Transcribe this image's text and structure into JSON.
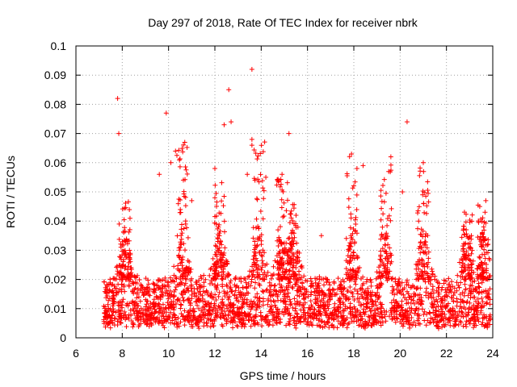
{
  "chart_data": {
    "type": "scatter",
    "title": "Day 297 of 2018, Rate Of TEC Index for receiver nbrk",
    "xlabel": "GPS time / hours",
    "ylabel": "ROTI / TECUs",
    "xlim": [
      6,
      24
    ],
    "ylim": [
      0,
      0.1
    ],
    "x_ticks": [
      "6",
      "8",
      "10",
      "12",
      "14",
      "16",
      "18",
      "20",
      "22",
      "24"
    ],
    "y_ticks": [
      "0",
      "0.01",
      "0.02",
      "0.03",
      "0.04",
      "0.05",
      "0.06",
      "0.07",
      "0.08",
      "0.09",
      "0.1"
    ],
    "grid": true,
    "marker": "+",
    "series_color": "#ff0000",
    "data_time_range": [
      7.2,
      23.9
    ],
    "density": {
      "typical_range": [
        0.005,
        0.02
      ],
      "peak_windows": [
        {
          "center": 8.1,
          "max": 0.047
        },
        {
          "center": 10.6,
          "max": 0.068
        },
        {
          "center": 12.2,
          "max": 0.058
        },
        {
          "center": 13.9,
          "max": 0.068
        },
        {
          "center": 14.9,
          "max": 0.056
        },
        {
          "center": 15.4,
          "max": 0.047
        },
        {
          "center": 17.9,
          "max": 0.063
        },
        {
          "center": 19.4,
          "max": 0.062
        },
        {
          "center": 21.0,
          "max": 0.06
        },
        {
          "center": 22.9,
          "max": 0.045
        },
        {
          "center": 23.6,
          "max": 0.047
        }
      ]
    },
    "points": [
      {
        "x": 7.8,
        "y": 0.082
      },
      {
        "x": 7.85,
        "y": 0.07
      },
      {
        "x": 9.9,
        "y": 0.077
      },
      {
        "x": 12.6,
        "y": 0.085
      },
      {
        "x": 13.6,
        "y": 0.092
      },
      {
        "x": 12.4,
        "y": 0.073
      },
      {
        "x": 12.7,
        "y": 0.074
      },
      {
        "x": 15.2,
        "y": 0.07
      },
      {
        "x": 20.3,
        "y": 0.074
      },
      {
        "x": 17.9,
        "y": 0.063
      },
      {
        "x": 19.6,
        "y": 0.062
      },
      {
        "x": 10.3,
        "y": 0.064
      },
      {
        "x": 10.7,
        "y": 0.067
      },
      {
        "x": 13.6,
        "y": 0.068
      },
      {
        "x": 13.6,
        "y": 0.066
      },
      {
        "x": 12.0,
        "y": 0.058
      },
      {
        "x": 10.1,
        "y": 0.06
      },
      {
        "x": 9.6,
        "y": 0.056
      },
      {
        "x": 13.4,
        "y": 0.056
      },
      {
        "x": 21.0,
        "y": 0.06
      },
      {
        "x": 18.4,
        "y": 0.059
      },
      {
        "x": 14.9,
        "y": 0.056
      },
      {
        "x": 14.2,
        "y": 0.055
      },
      {
        "x": 20.1,
        "y": 0.05
      },
      {
        "x": 12.0,
        "y": 0.048
      },
      {
        "x": 11.0,
        "y": 0.047
      },
      {
        "x": 16.6,
        "y": 0.035
      },
      {
        "x": 20.8,
        "y": 0.04
      },
      {
        "x": 23.7,
        "y": 0.047
      }
    ]
  }
}
